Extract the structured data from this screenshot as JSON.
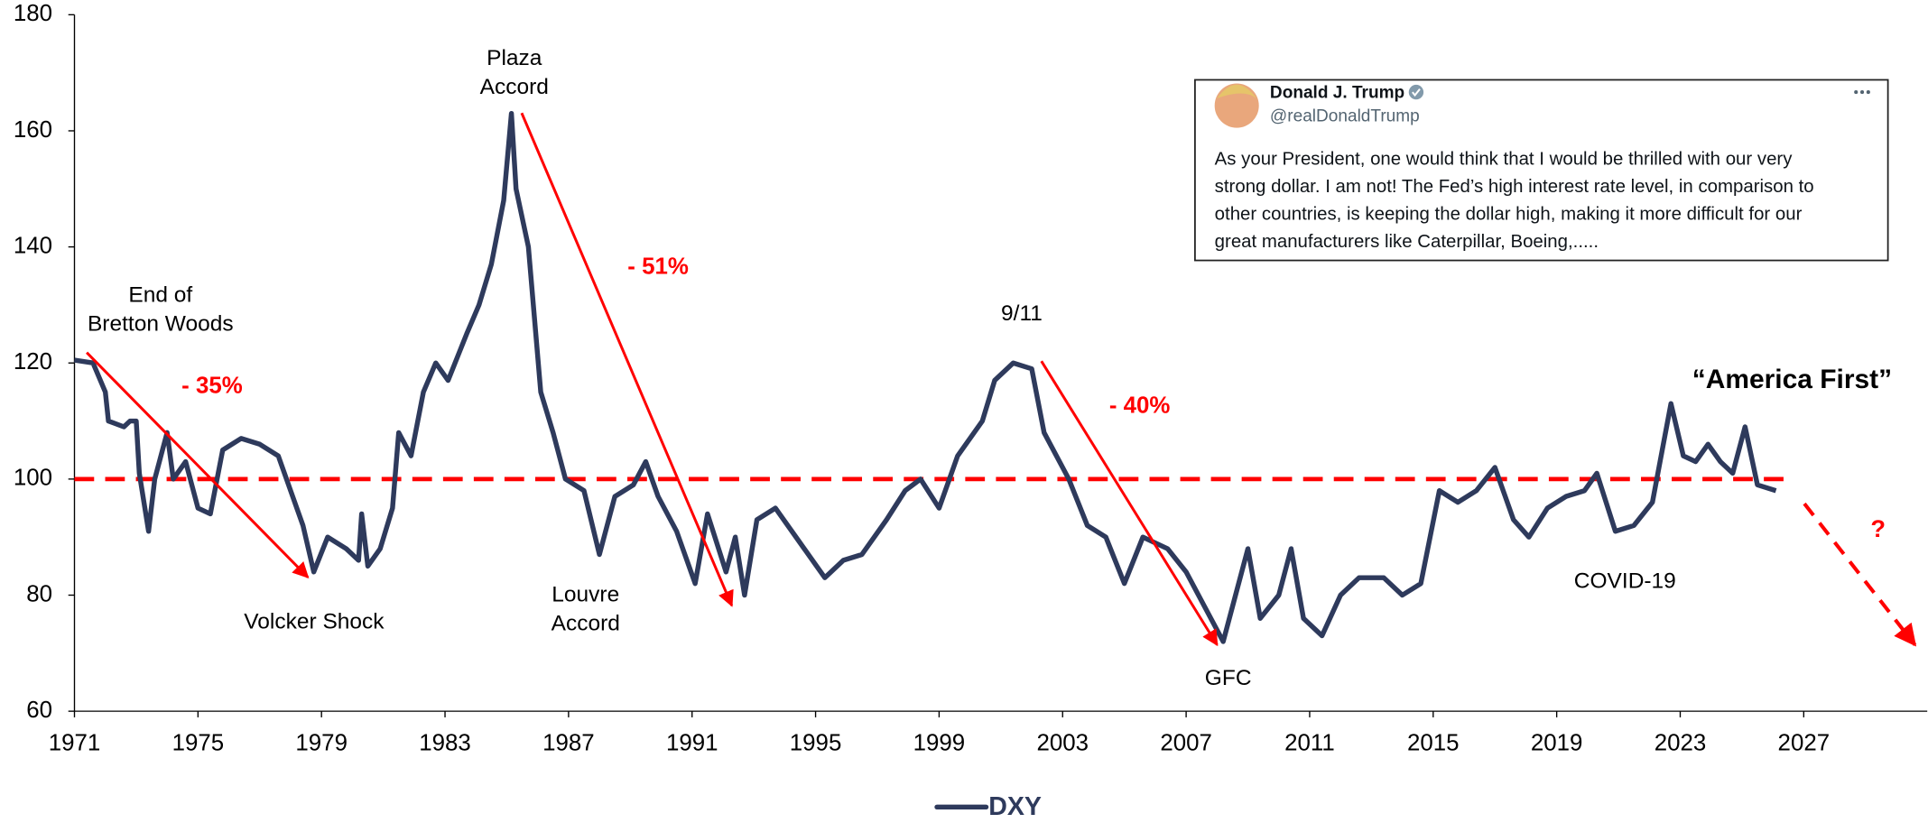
{
  "chart_data": {
    "type": "line",
    "xlim": [
      1971,
      2031
    ],
    "xticks": [
      1971,
      1975,
      1979,
      1983,
      1987,
      1991,
      1995,
      1999,
      2003,
      2007,
      2011,
      2015,
      2019,
      2023,
      2027
    ],
    "ylim": [
      60,
      180
    ],
    "yticks": [
      60,
      80,
      100,
      120,
      140,
      160,
      180
    ],
    "reference_line": {
      "value": 100,
      "color": "#ff0000"
    },
    "legend": "bottom",
    "series": [
      {
        "name": "DXY",
        "color": "#2e3a5c",
        "x": [
          1971.0,
          1971.6,
          1972.0,
          1972.1,
          1972.6,
          1972.8,
          1973.0,
          1973.1,
          1973.4,
          1973.6,
          1974.0,
          1974.2,
          1974.6,
          1975.0,
          1975.4,
          1975.8,
          1976.4,
          1977.0,
          1977.6,
          1978.0,
          1978.4,
          1978.75,
          1979.2,
          1979.8,
          1980.2,
          1980.3,
          1980.5,
          1980.9,
          1981.3,
          1981.5,
          1981.9,
          1982.3,
          1982.7,
          1983.1,
          1983.7,
          1984.1,
          1984.5,
          1984.9,
          1985.15,
          1985.3,
          1985.7,
          1986.1,
          1986.5,
          1986.9,
          1987.5,
          1988.0,
          1988.5,
          1989.1,
          1989.5,
          1989.9,
          1990.5,
          1991.1,
          1991.5,
          1992.1,
          1992.4,
          1992.7,
          1993.1,
          1993.7,
          1994.5,
          1995.3,
          1995.9,
          1996.5,
          1997.3,
          1997.9,
          1998.4,
          1999.0,
          1999.6,
          2000.4,
          2000.8,
          2001.4,
          2002.0,
          2002.4,
          2003.2,
          2003.8,
          2004.4,
          2005.0,
          2005.6,
          2006.4,
          2007.0,
          2007.6,
          2008.2,
          2008.6,
          2009.0,
          2009.4,
          2010.0,
          2010.4,
          2010.8,
          2011.4,
          2012.0,
          2012.6,
          2013.4,
          2014.0,
          2014.6,
          2015.2,
          2015.8,
          2016.4,
          2017.0,
          2017.6,
          2018.1,
          2018.7,
          2019.3,
          2019.9,
          2020.3,
          2020.9,
          2021.5,
          2022.1,
          2022.7,
          2023.1,
          2023.5,
          2023.9,
          2024.3,
          2024.7,
          2025.1,
          2025.5,
          2026.1
        ],
        "values": [
          120.5,
          120,
          115,
          110,
          109,
          110,
          110,
          101,
          91,
          100,
          108,
          100,
          103,
          95,
          94,
          105,
          107,
          106,
          104,
          98,
          92,
          84,
          90,
          88,
          86,
          94,
          85,
          88,
          95,
          108,
          104,
          115,
          120,
          117,
          125,
          130,
          137,
          148,
          163,
          150,
          140,
          115,
          108,
          100,
          98,
          87,
          97,
          99,
          103,
          97,
          91,
          82,
          94,
          84,
          90,
          80,
          93,
          95,
          89,
          83,
          86,
          87,
          93,
          98,
          100,
          95,
          104,
          110,
          117,
          120,
          119,
          108,
          100,
          92,
          90,
          82,
          90,
          88,
          84,
          78,
          72,
          80,
          88,
          76,
          80,
          88,
          76,
          73,
          80,
          83,
          83,
          80,
          82,
          98,
          96,
          98,
          102,
          93,
          90,
          95,
          97,
          98,
          101,
          91,
          92,
          96,
          113,
          104,
          103,
          106,
          103,
          101,
          109,
          99,
          98
        ]
      }
    ],
    "annotations": [
      {
        "lines": [
          "End of",
          "Bretton Woods"
        ]
      },
      {
        "lines": [
          "- 35%"
        ]
      },
      {
        "lines": [
          "Volcker Shock"
        ]
      },
      {
        "lines": [
          "Plaza",
          "Accord"
        ]
      },
      {
        "lines": [
          "- 51%"
        ]
      },
      {
        "lines": [
          "Louvre",
          "Accord"
        ]
      },
      {
        "lines": [
          "9/11"
        ]
      },
      {
        "lines": [
          "- 40%"
        ]
      },
      {
        "lines": [
          "GFC"
        ]
      },
      {
        "lines": [
          "COVID-19"
        ]
      },
      {
        "lines": [
          "“America First”"
        ]
      },
      {
        "lines": [
          "?"
        ]
      }
    ]
  },
  "tweet": {
    "name": "Donald J. Trump",
    "handle": "@realDonaldTrump",
    "lines": [
      "As your President, one would think that I would be thrilled with our very",
      "strong dollar. I am not! The Fed’s high interest rate level, in comparison to",
      "other countries, is keeping the dollar high, making it more difficult for our",
      "great manufacturers like Caterpillar, Boeing,....."
    ]
  }
}
